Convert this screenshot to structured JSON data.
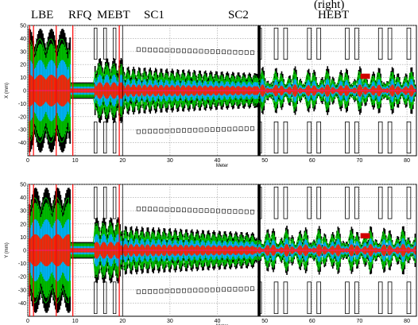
{
  "figure": {
    "section_labels": [
      "LBE",
      "RFQ",
      "MEBT",
      "SC1",
      "SC2",
      "HEBT"
    ],
    "top_right_text": "(right)"
  },
  "chart_data": [
    {
      "type": "heatmap",
      "name": "x-envelope",
      "xlabel": "Meter",
      "ylabel": "X (mm)",
      "xlim": [
        0,
        82
      ],
      "ylim": [
        -50,
        50
      ],
      "xticks": [
        0,
        10,
        20,
        30,
        40,
        50,
        60,
        70,
        80
      ],
      "yticks": [
        50,
        40,
        30,
        20,
        10,
        0,
        -10,
        -20,
        -30,
        -40
      ],
      "grid": true
    },
    {
      "type": "heatmap",
      "name": "y-envelope",
      "xlabel": "Meter",
      "ylabel": "Y (mm)",
      "xlim": [
        0,
        82
      ],
      "ylim": [
        -50,
        50
      ],
      "xticks": [
        0,
        10,
        20,
        30,
        40,
        50,
        60,
        70,
        80
      ],
      "yticks": [
        50,
        40,
        30,
        20,
        10,
        0,
        -10,
        -20,
        -30,
        -40
      ],
      "grid": true
    }
  ],
  "colors": {
    "halo": "#000000",
    "outer": "#00c000",
    "middle": "#00b0ff",
    "inner": "#ff2000",
    "aperture": "#000000",
    "marker": "#ff0000",
    "grid": "#a0a0a0"
  }
}
